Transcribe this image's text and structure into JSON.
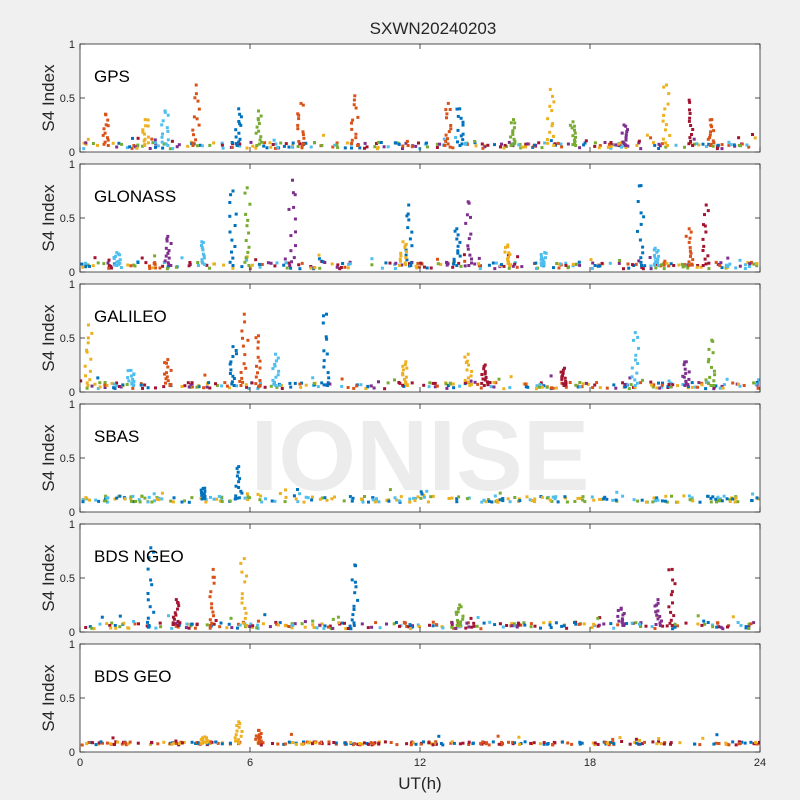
{
  "chart_data": {
    "type": "scatter",
    "title": "SXWN20240203",
    "xlabel": "UT(h)",
    "ylabel": "S4 Index",
    "xlim": [
      0,
      24
    ],
    "ylim": [
      0,
      1
    ],
    "xticks": [
      0,
      6,
      12,
      18,
      24
    ],
    "yticks": [
      0,
      0.5,
      1
    ],
    "grid": false,
    "watermark": "IONISE",
    "colors": [
      "#0072BD",
      "#D95319",
      "#EDB120",
      "#7E2F8E",
      "#77AC30",
      "#4DBEEE",
      "#A2142F"
    ],
    "panels": [
      {
        "name": "GPS",
        "baseline": 0.06,
        "spikes": [
          {
            "x": 0.9,
            "y": 0.35,
            "c": 1
          },
          {
            "x": 2.3,
            "y": 0.3,
            "c": 2
          },
          {
            "x": 3.0,
            "y": 0.38,
            "c": 5
          },
          {
            "x": 4.1,
            "y": 0.62,
            "c": 1
          },
          {
            "x": 5.6,
            "y": 0.4,
            "c": 0
          },
          {
            "x": 6.3,
            "y": 0.38,
            "c": 4
          },
          {
            "x": 7.8,
            "y": 0.45,
            "c": 1
          },
          {
            "x": 9.7,
            "y": 0.52,
            "c": 1
          },
          {
            "x": 13.0,
            "y": 0.45,
            "c": 1
          },
          {
            "x": 13.4,
            "y": 0.4,
            "c": 0
          },
          {
            "x": 15.3,
            "y": 0.3,
            "c": 4
          },
          {
            "x": 16.6,
            "y": 0.58,
            "c": 2
          },
          {
            "x": 17.4,
            "y": 0.28,
            "c": 4
          },
          {
            "x": 19.2,
            "y": 0.25,
            "c": 3
          },
          {
            "x": 20.7,
            "y": 0.62,
            "c": 2
          },
          {
            "x": 21.5,
            "y": 0.48,
            "c": 6
          },
          {
            "x": 22.3,
            "y": 0.3,
            "c": 1
          }
        ]
      },
      {
        "name": "GLONASS",
        "baseline": 0.06,
        "spikes": [
          {
            "x": 1.3,
            "y": 0.18,
            "c": 5
          },
          {
            "x": 3.1,
            "y": 0.33,
            "c": 3
          },
          {
            "x": 4.3,
            "y": 0.28,
            "c": 5
          },
          {
            "x": 5.4,
            "y": 0.75,
            "c": 0
          },
          {
            "x": 5.9,
            "y": 0.78,
            "c": 4
          },
          {
            "x": 7.5,
            "y": 0.85,
            "c": 3
          },
          {
            "x": 11.6,
            "y": 0.62,
            "c": 0
          },
          {
            "x": 11.4,
            "y": 0.28,
            "c": 2
          },
          {
            "x": 13.7,
            "y": 0.65,
            "c": 3
          },
          {
            "x": 13.3,
            "y": 0.4,
            "c": 0
          },
          {
            "x": 15.1,
            "y": 0.25,
            "c": 2
          },
          {
            "x": 16.4,
            "y": 0.18,
            "c": 5
          },
          {
            "x": 19.8,
            "y": 0.8,
            "c": 0
          },
          {
            "x": 20.3,
            "y": 0.22,
            "c": 5
          },
          {
            "x": 21.5,
            "y": 0.4,
            "c": 1
          },
          {
            "x": 22.1,
            "y": 0.62,
            "c": 6
          }
        ]
      },
      {
        "name": "GALILEO",
        "baseline": 0.06,
        "spikes": [
          {
            "x": 0.3,
            "y": 0.62,
            "c": 2
          },
          {
            "x": 1.8,
            "y": 0.2,
            "c": 5
          },
          {
            "x": 3.1,
            "y": 0.3,
            "c": 1
          },
          {
            "x": 5.8,
            "y": 0.72,
            "c": 1
          },
          {
            "x": 5.4,
            "y": 0.42,
            "c": 0
          },
          {
            "x": 6.3,
            "y": 0.52,
            "c": 1
          },
          {
            "x": 6.9,
            "y": 0.35,
            "c": 5
          },
          {
            "x": 8.7,
            "y": 0.72,
            "c": 0
          },
          {
            "x": 11.5,
            "y": 0.28,
            "c": 2
          },
          {
            "x": 13.7,
            "y": 0.35,
            "c": 2
          },
          {
            "x": 14.3,
            "y": 0.25,
            "c": 6
          },
          {
            "x": 17.1,
            "y": 0.22,
            "c": 6
          },
          {
            "x": 19.6,
            "y": 0.55,
            "c": 5
          },
          {
            "x": 21.4,
            "y": 0.28,
            "c": 3
          },
          {
            "x": 22.3,
            "y": 0.48,
            "c": 4
          }
        ]
      },
      {
        "name": "SBAS",
        "baseline": 0.12,
        "spikes": [
          {
            "x": 5.6,
            "y": 0.42,
            "c": 0
          },
          {
            "x": 4.4,
            "y": 0.22,
            "c": 0
          }
        ]
      },
      {
        "name": "BDS NGEO",
        "baseline": 0.06,
        "spikes": [
          {
            "x": 2.5,
            "y": 0.78,
            "c": 0
          },
          {
            "x": 3.4,
            "y": 0.3,
            "c": 6
          },
          {
            "x": 4.7,
            "y": 0.58,
            "c": 1
          },
          {
            "x": 5.8,
            "y": 0.68,
            "c": 2
          },
          {
            "x": 9.7,
            "y": 0.62,
            "c": 0
          },
          {
            "x": 13.4,
            "y": 0.25,
            "c": 4
          },
          {
            "x": 19.1,
            "y": 0.22,
            "c": 3
          },
          {
            "x": 20.4,
            "y": 0.3,
            "c": 3
          },
          {
            "x": 20.9,
            "y": 0.58,
            "c": 6
          }
        ]
      },
      {
        "name": "BDS GEO",
        "baseline": 0.08,
        "spikes": [
          {
            "x": 4.4,
            "y": 0.14,
            "c": 2
          },
          {
            "x": 5.6,
            "y": 0.28,
            "c": 2
          },
          {
            "x": 6.3,
            "y": 0.2,
            "c": 1
          }
        ]
      }
    ]
  }
}
